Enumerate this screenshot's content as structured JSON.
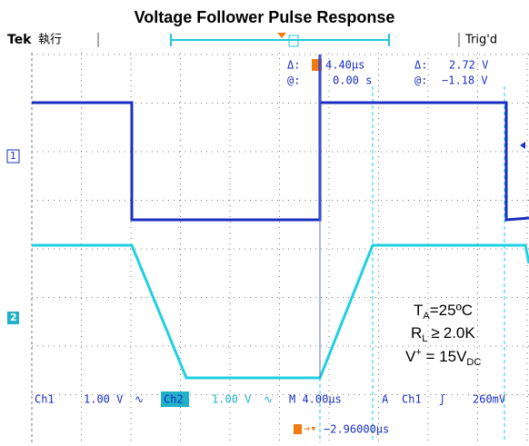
{
  "header": {
    "title": "Voltage Follower Pulse Response"
  },
  "topbar": {
    "brand": "Tek",
    "mode": "執行",
    "status": "Trig'd"
  },
  "readout": {
    "time_delta_label": "Δ:",
    "time_delta": "4.40µs",
    "volt_delta_label": "Δ:",
    "volt_delta": "2.72 V",
    "time_at_label": "@:",
    "time_at": "0.00 s",
    "volt_at_label": "@:",
    "volt_at": "−1.18 V"
  },
  "channel_markers": [
    "1",
    "2"
  ],
  "status": {
    "ch1": "Ch1",
    "ch1_scale": "1.00 V",
    "ch2": "Ch2",
    "ch2_scale": "1.00 V",
    "timebase": "M 4.00µs",
    "trigger_mode": "A",
    "trigger_source": "Ch1",
    "trigger_level": "260mV",
    "trigger_position": "−2.96000µs"
  },
  "annotation": {
    "line1": [
      "T",
      "A",
      "=25ºC"
    ],
    "line2": [
      "R",
      "L",
      "≥",
      "2.0K"
    ],
    "line3": [
      "V",
      "+",
      " = 15V",
      "DC"
    ]
  }
}
